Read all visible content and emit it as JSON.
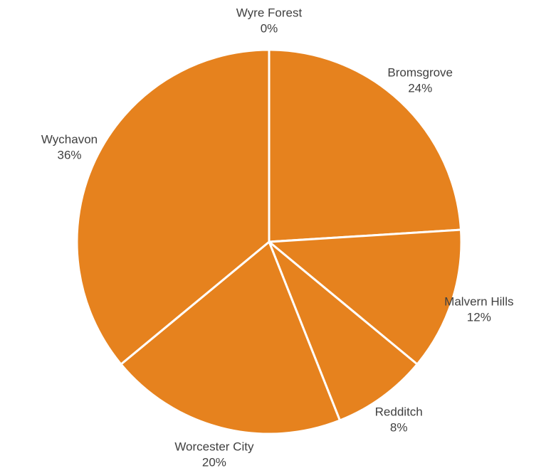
{
  "chart_data": {
    "type": "pie",
    "categories": [
      "Bromsgrove",
      "Malvern Hills",
      "Redditch",
      "Worcester City",
      "Wychavon",
      "Wyre Forest"
    ],
    "values": [
      24,
      12,
      8,
      20,
      36,
      0
    ],
    "value_labels": [
      "24%",
      "12%",
      "8%",
      "20%",
      "36%",
      "0%"
    ],
    "color": "#e6821e"
  }
}
